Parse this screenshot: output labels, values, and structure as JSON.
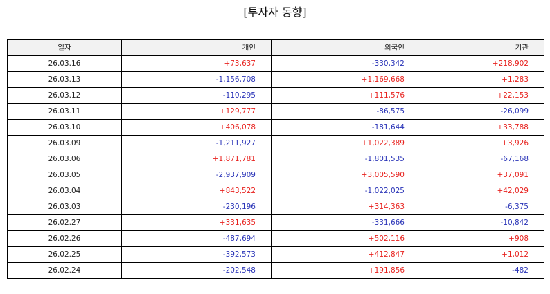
{
  "title": "[투자자 동향]",
  "table": {
    "headers": {
      "date": "일자",
      "individual": "개인",
      "foreign": "외국인",
      "institution": "기관"
    },
    "colors": {
      "positive": "#e8231f",
      "negative": "#2b35b8"
    },
    "rows": [
      {
        "date": "26.03.16",
        "individual": "+73,637",
        "foreign": "-330,342",
        "institution": "+218,902"
      },
      {
        "date": "26.03.13",
        "individual": "-1,156,708",
        "foreign": "+1,169,668",
        "institution": "+1,283"
      },
      {
        "date": "26.03.12",
        "individual": "-110,295",
        "foreign": "+111,576",
        "institution": "+22,153"
      },
      {
        "date": "26.03.11",
        "individual": "+129,777",
        "foreign": "-86,575",
        "institution": "-26,099"
      },
      {
        "date": "26.03.10",
        "individual": "+406,078",
        "foreign": "-181,644",
        "institution": "+33,788"
      },
      {
        "date": "26.03.09",
        "individual": "-1,211,927",
        "foreign": "+1,022,389",
        "institution": "+3,926"
      },
      {
        "date": "26.03.06",
        "individual": "+1,871,781",
        "foreign": "-1,801,535",
        "institution": "-67,168"
      },
      {
        "date": "26.03.05",
        "individual": "-2,937,909",
        "foreign": "+3,005,590",
        "institution": "+37,091"
      },
      {
        "date": "26.03.04",
        "individual": "+843,522",
        "foreign": "-1,022,025",
        "institution": "+42,029"
      },
      {
        "date": "26.03.03",
        "individual": "-230,196",
        "foreign": "+314,363",
        "institution": "-6,375"
      },
      {
        "date": "26.02.27",
        "individual": "+331,635",
        "foreign": "-331,666",
        "institution": "-10,842"
      },
      {
        "date": "26.02.26",
        "individual": "-487,694",
        "foreign": "+502,116",
        "institution": "+908"
      },
      {
        "date": "26.02.25",
        "individual": "-392,573",
        "foreign": "+412,847",
        "institution": "+1,012"
      },
      {
        "date": "26.02.24",
        "individual": "-202,548",
        "foreign": "+191,856",
        "institution": "-482"
      }
    ]
  }
}
